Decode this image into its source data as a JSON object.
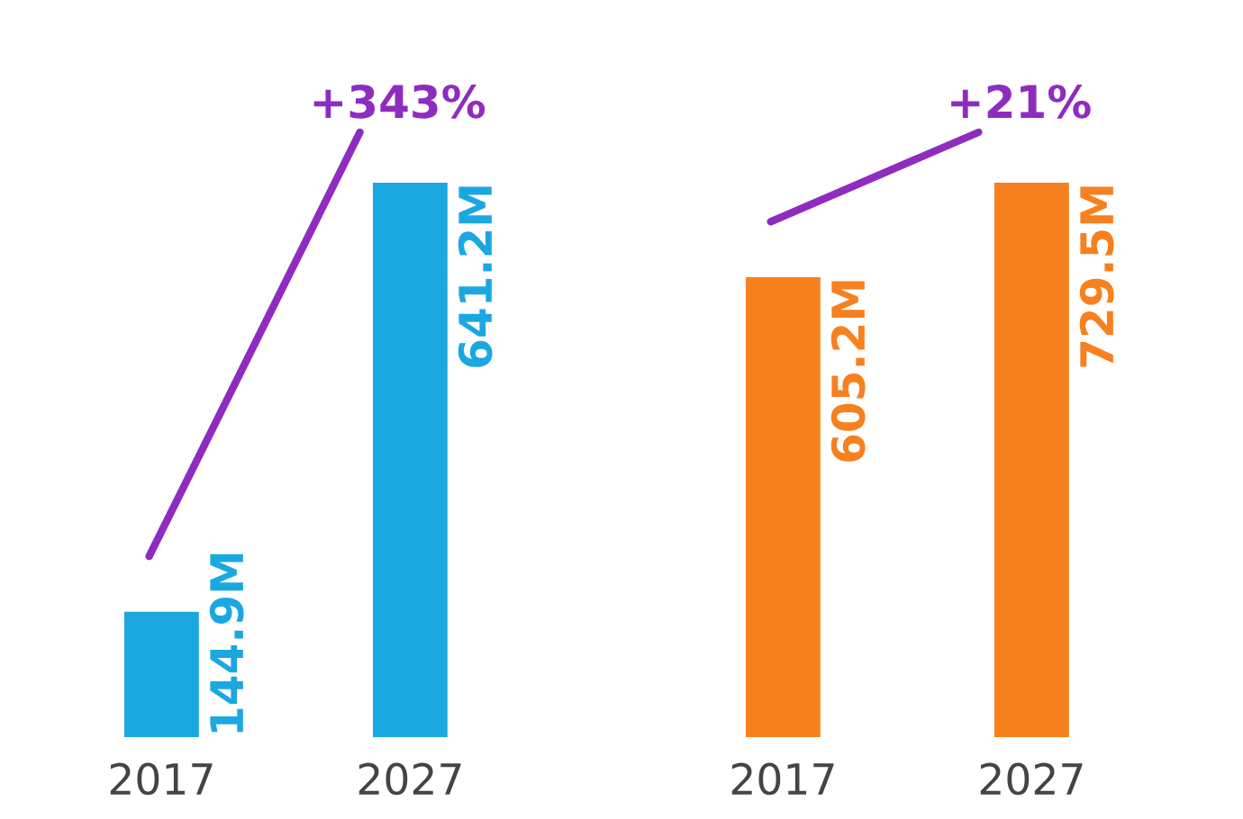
{
  "chart_data": [
    {
      "type": "bar",
      "categories": [
        "2017",
        "2027"
      ],
      "values": [
        144.9,
        641.2
      ],
      "value_labels": [
        "144.9M",
        "641.2M"
      ],
      "color": "#1ba8e0",
      "annotations": [
        "+343%"
      ]
    },
    {
      "type": "bar",
      "categories": [
        "2017",
        "2027"
      ],
      "values": [
        605.2,
        729.5
      ],
      "value_labels": [
        "605.2M",
        "729.5M"
      ],
      "color": "#f7801f",
      "annotations": [
        "+21%"
      ]
    }
  ]
}
